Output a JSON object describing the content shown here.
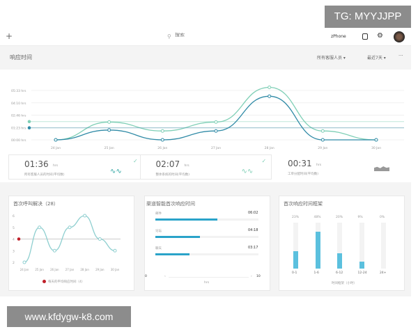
{
  "watermarks": {
    "top": "TG: MYYJJPP",
    "bottom": "www.kfdygw-k8.com"
  },
  "topbar": {
    "add": "+",
    "search_placeholder": "搜索",
    "device": "zPhone",
    "icons": [
      "plus-icon",
      "search-icon",
      "export-icon",
      "gear-icon",
      "avatar"
    ]
  },
  "section": {
    "title": "响应时间",
    "filter_agents": "所有客服人员 ▾",
    "filter_range": "最近7天 ▾",
    "more": "···"
  },
  "colors": {
    "light": "#7fcfb6",
    "dark": "#2f8aa6",
    "bar": "#2aa3c9",
    "hist": "#5bc0de",
    "avg": "#c0202a"
  },
  "chart_data": [
    {
      "type": "line",
      "x": [
        "24 Jan",
        "25 Jan",
        "26 Jan",
        "27 Jan",
        "28 Jan",
        "29 Jan",
        "30 Jan"
      ],
      "yticks": [
        "00:00 hrs",
        "01:23 hrs",
        "02:46 hrs",
        "04:10 hrs",
        "05:33 hrs"
      ],
      "ylim_hours": [
        0,
        5.55
      ],
      "series": [
        {
          "color": "#7fcfb6",
          "values_hours": [
            0,
            2.0,
            1.0,
            2.0,
            5.9,
            1.0,
            0
          ],
          "reference_hours": 2.05
        },
        {
          "color": "#2f8aa6",
          "values_hours": [
            0,
            1.1,
            0,
            1.0,
            4.9,
            0,
            0
          ],
          "reference_hours": 1.35
        }
      ]
    },
    {
      "type": "line",
      "title": "首次呼叫解决（28）",
      "x": [
        "24 Jan",
        "25 Jan",
        "26 Jan",
        "27 Jan",
        "28 Jan",
        "29 Jan",
        "30 Jan"
      ],
      "yticks": [
        "2",
        "3",
        "4",
        "5",
        "6"
      ],
      "ylim": [
        2,
        6
      ],
      "values": [
        2,
        5,
        3,
        5,
        6,
        4,
        3
      ],
      "average": 4,
      "legend": "每天的平均响应时间（4）"
    },
    {
      "type": "bar",
      "title": "渠道智能首次响应时间",
      "categories": [
        "邮件",
        "论坛",
        "聊天"
      ],
      "labels": [
        "06:02",
        "04:18",
        "03:17"
      ],
      "values_hours": [
        6.03,
        4.3,
        3.28
      ],
      "xlim": [
        0,
        10
      ],
      "xmin_label": "0",
      "xmax_label": "10",
      "xlabel": "hrs"
    },
    {
      "type": "bar",
      "title": "首次响应时间框架",
      "categories": [
        "0-1",
        "1-6",
        "6-12",
        "12-24",
        "24+"
      ],
      "labels": [
        "23%",
        "48%",
        "20%",
        "9%",
        "0%"
      ],
      "values": [
        23,
        48,
        20,
        9,
        0
      ],
      "xlabel": "时间框架（小时）"
    }
  ],
  "stats": [
    {
      "value": "01:36",
      "unit": "hrs",
      "label": "所有客服人员的时间(平均数)"
    },
    {
      "value": "02:07",
      "unit": "hrs",
      "label": "整体系统的时间(平均数)"
    },
    {
      "value": "00:31",
      "unit": "hrs",
      "label": "工单分配时间(平均数)"
    }
  ]
}
